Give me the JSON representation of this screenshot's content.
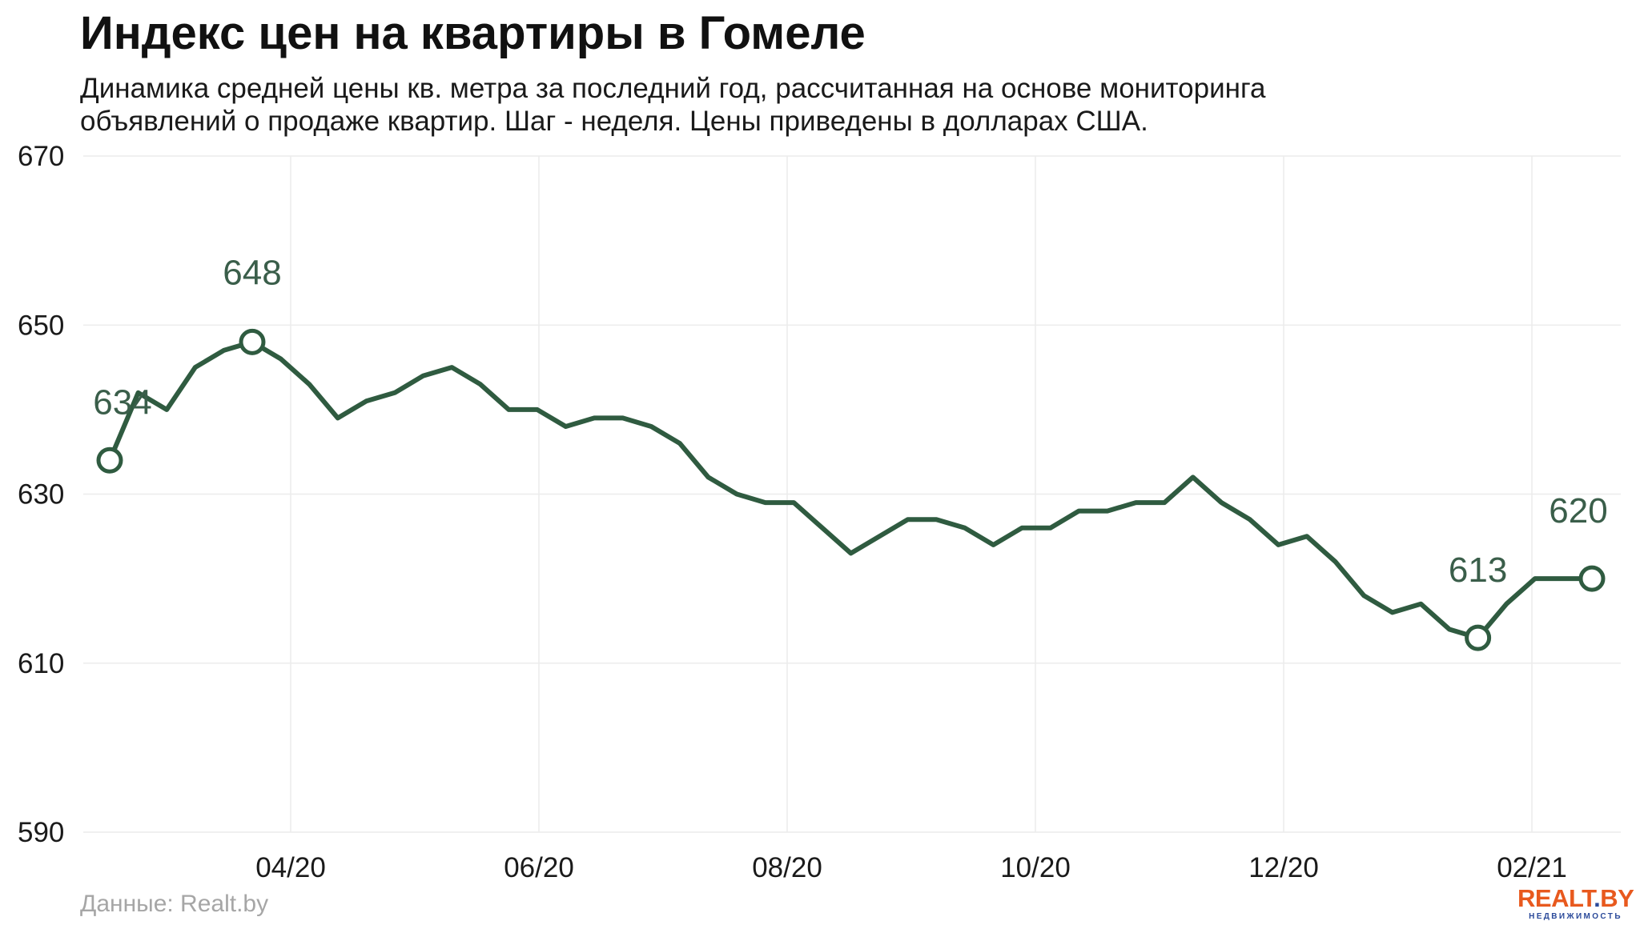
{
  "header": {
    "title": "Индекс цен на квартиры в Гомеле",
    "subtitle_line1": "Динамика средней цены кв. метра за последний год, рассчитанная на основе мониторинга",
    "subtitle_line2": "объявлений о продаже квартир. Шаг - неделя. Цены приведены в долларах США."
  },
  "footer": {
    "source": "Данные: Realt.by",
    "logo_main_a": "REALT",
    "logo_main_dot": ".",
    "logo_main_b": "BY",
    "logo_sub": "НЕДВИЖИМОСТЬ"
  },
  "colors": {
    "line": "#2f5b40",
    "label": "#3a5e4a",
    "grid": "#ececec",
    "logo_orange": "#e8591e",
    "logo_blue": "#2b4a9a"
  },
  "chart_data": {
    "type": "line",
    "title": "Индекс цен на квартиры в Гомеле",
    "xlabel": "",
    "ylabel": "",
    "ylim": [
      590,
      670
    ],
    "yticks": [
      590,
      610,
      630,
      650,
      670
    ],
    "xticks": [
      "04/20",
      "06/20",
      "08/20",
      "10/20",
      "12/20",
      "02/21"
    ],
    "grid": true,
    "series": [
      {
        "values": [
          634,
          642,
          640,
          645,
          647,
          648,
          646,
          643,
          639,
          641,
          642,
          644,
          645,
          643,
          640,
          640,
          638,
          639,
          639,
          638,
          636,
          632,
          630,
          629,
          629,
          626,
          623,
          625,
          627,
          627,
          626,
          624,
          626,
          626,
          628,
          628,
          629,
          629,
          632,
          629,
          627,
          624,
          625,
          622,
          618,
          616,
          617,
          614,
          613,
          617,
          620,
          620,
          620
        ]
      }
    ],
    "annotations": [
      {
        "index": 0,
        "value": 634,
        "label": "634"
      },
      {
        "index": 5,
        "value": 648,
        "label": "648"
      },
      {
        "index": 48,
        "value": 613,
        "label": "613"
      },
      {
        "index": 52,
        "value": 620,
        "label": "620"
      }
    ]
  }
}
